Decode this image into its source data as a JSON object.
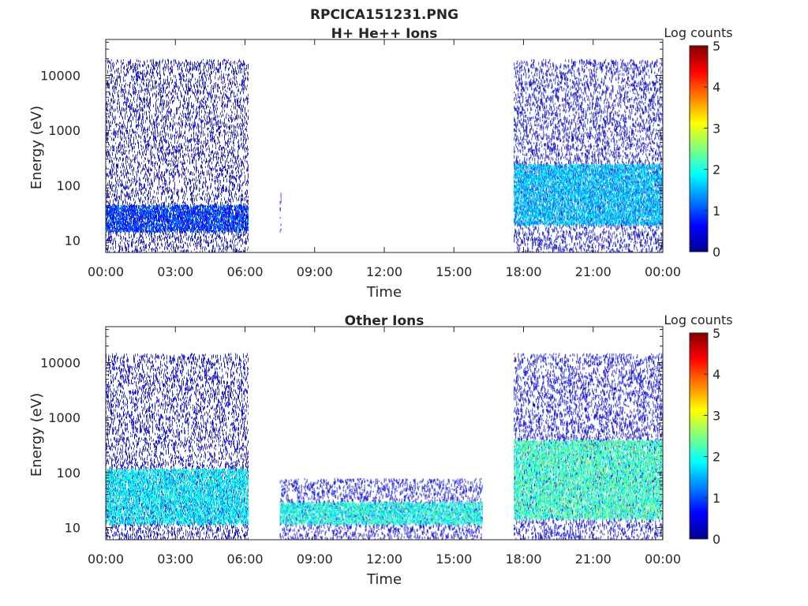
{
  "figure": {
    "title": "RPCICA151231.PNG"
  },
  "chart_data": [
    {
      "type": "heatmap",
      "title": "H+ He++ Ions",
      "xlabel": "Time",
      "ylabel": "Energy (eV)",
      "y_scale": "log",
      "ylim": [
        6,
        45000
      ],
      "x_ticks": [
        "00:00",
        "03:00",
        "06:00",
        "09:00",
        "12:00",
        "15:00",
        "18:00",
        "21:00",
        "00:00"
      ],
      "y_ticks": [
        "10",
        "100",
        "1000",
        "10000"
      ],
      "colorbar": {
        "label": "Log counts",
        "ticks": [
          "0",
          "1",
          "2",
          "3",
          "4",
          "5"
        ],
        "range": [
          0,
          5
        ],
        "colormap": "jet"
      },
      "regions": [
        {
          "t_start": "00:00",
          "t_end": "06:10",
          "e_min": 6,
          "e_max": 20000,
          "typical_log_counts": 0.3,
          "band_low_eV": 15,
          "band_high_eV": 45,
          "band_log_counts": 0.9
        },
        {
          "t_start": "07:30",
          "t_end": "07:35",
          "e_min": 15,
          "e_max": 80,
          "typical_log_counts": 0.6
        },
        {
          "t_start": "17:35",
          "t_end": "24:00",
          "e_min": 6,
          "e_max": 20000,
          "typical_log_counts": 0.3,
          "band_low_eV": 20,
          "band_high_eV": 250,
          "band_log_counts": 1.6
        }
      ]
    },
    {
      "type": "heatmap",
      "title": "Other Ions",
      "xlabel": "Time",
      "ylabel": "Energy (eV)",
      "y_scale": "log",
      "ylim": [
        6,
        45000
      ],
      "x_ticks": [
        "00:00",
        "03:00",
        "06:00",
        "09:00",
        "12:00",
        "15:00",
        "18:00",
        "21:00",
        "00:00"
      ],
      "y_ticks": [
        "10",
        "100",
        "1000",
        "10000"
      ],
      "colorbar": {
        "label": "Log counts",
        "ticks": [
          "0",
          "1",
          "2",
          "3",
          "4",
          "5"
        ],
        "range": [
          0,
          5
        ],
        "colormap": "jet"
      },
      "regions": [
        {
          "t_start": "00:00",
          "t_end": "06:10",
          "e_min": 6,
          "e_max": 15000,
          "typical_log_counts": 0.4,
          "band_low_eV": 12,
          "band_high_eV": 120,
          "band_log_counts": 1.8
        },
        {
          "t_start": "07:30",
          "t_end": "16:15",
          "e_min": 6,
          "e_max": 80,
          "typical_log_counts": 0.4,
          "band_low_eV": 12,
          "band_high_eV": 30,
          "band_log_counts": 2.0
        },
        {
          "t_start": "17:35",
          "t_end": "24:00",
          "e_min": 6,
          "e_max": 15000,
          "typical_log_counts": 0.4,
          "band_low_eV": 15,
          "band_high_eV": 400,
          "band_log_counts": 2.2
        }
      ]
    }
  ]
}
